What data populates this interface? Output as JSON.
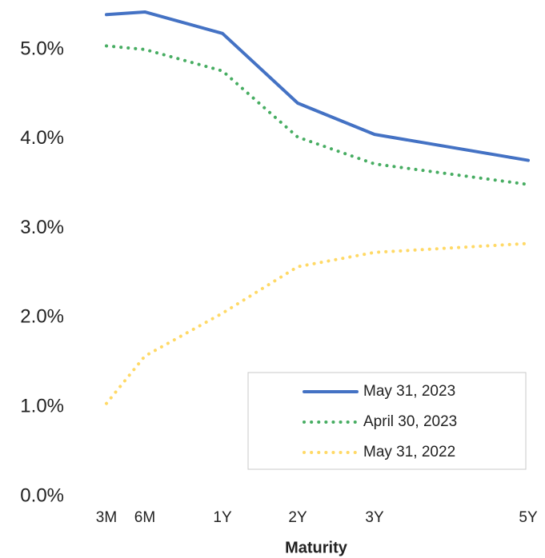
{
  "chart_data": {
    "type": "line",
    "x_label": "Maturity",
    "categories": [
      "3M",
      "6M",
      "1Y",
      "2Y",
      "3Y",
      "5Y"
    ],
    "series": [
      {
        "name": "May 31, 2023",
        "color": "#4472c4",
        "dash": "solid",
        "values": [
          5.39,
          5.42,
          5.18,
          4.4,
          4.05,
          3.76
        ]
      },
      {
        "name": "April 30, 2023",
        "color": "#47ad62",
        "dash": "dotted",
        "values": [
          5.04,
          5.0,
          4.76,
          4.02,
          3.72,
          3.49
        ]
      },
      {
        "name": "May 31, 2022",
        "color": "#ffd966",
        "dash": "dotted",
        "values": [
          1.04,
          1.57,
          2.05,
          2.57,
          2.73,
          2.83
        ]
      }
    ],
    "ylim": [
      0,
      5.5
    ],
    "yticks": [
      {
        "value": 0,
        "label": "0.0%"
      },
      {
        "value": 1,
        "label": "1.0%"
      },
      {
        "value": 2,
        "label": "2.0%"
      },
      {
        "value": 3,
        "label": "3.0%"
      },
      {
        "value": 4,
        "label": "4.0%"
      },
      {
        "value": 5,
        "label": "5.0%"
      }
    ],
    "grid": false,
    "legend": "lower-right"
  }
}
